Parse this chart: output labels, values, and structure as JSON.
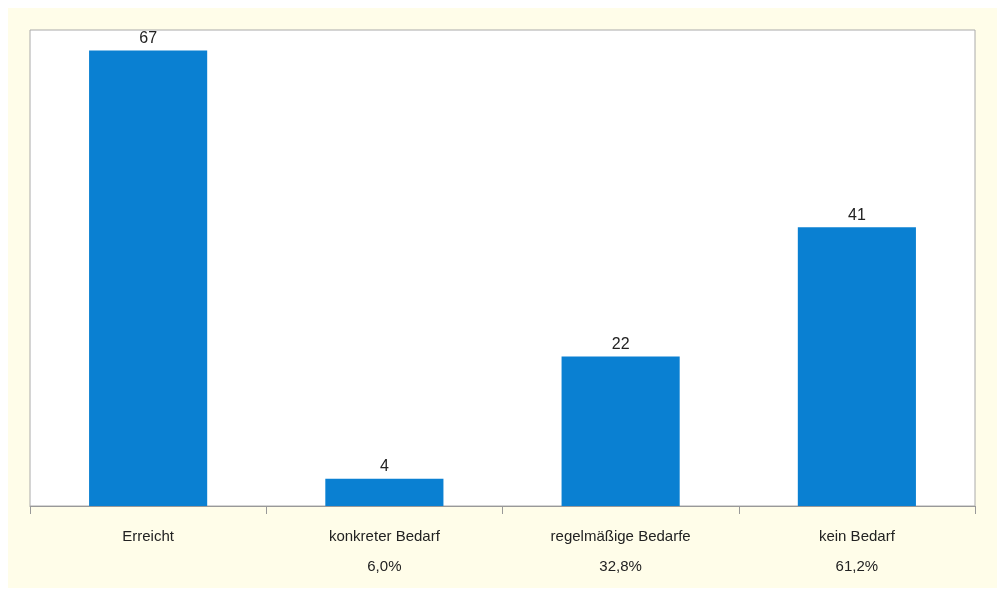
{
  "chart_data": {
    "type": "bar",
    "categories": [
      "Erreicht",
      "konkreter Bedarf\n6,0%",
      "regelmäßige Bedarfe\n32,8%",
      "kein Bedarf\n61,2%"
    ],
    "values": [
      67,
      4,
      22,
      41
    ],
    "color": "#0a80d2",
    "data_labels": true,
    "grid": false
  }
}
